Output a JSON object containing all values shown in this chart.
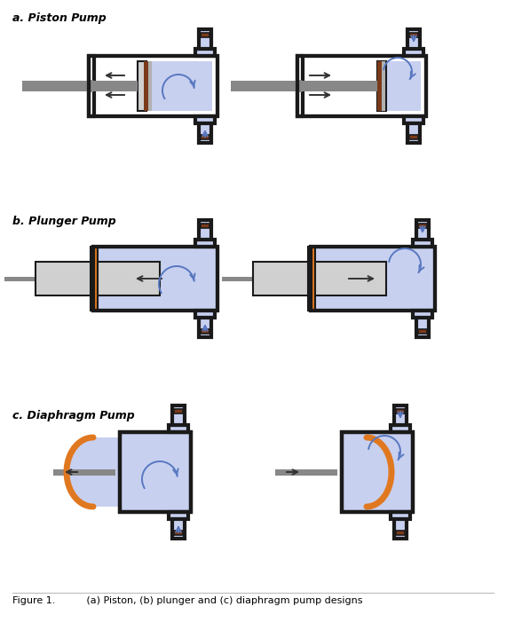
{
  "bg_color": "#ffffff",
  "pump_fill": "#c8d0f0",
  "pump_stroke": "#1a1a1a",
  "rod_color": "#888888",
  "piston_fill": "#d0d0d0",
  "seal_brown": "#7a3a1a",
  "seal_gray": "#b0b0b0",
  "orange_color": "#e07820",
  "valve_color": "#7a3a1a",
  "arrow_color": "#5878c0",
  "title_a": "a. Piston Pump",
  "title_b": "b. Plunger Pump",
  "title_c": "c. Diaphragm Pump",
  "caption": "Figure 1.          (a) Piston, (b) plunger and (c) diaphragm pump designs",
  "lw_main": 3.0,
  "lw_thin": 1.5
}
